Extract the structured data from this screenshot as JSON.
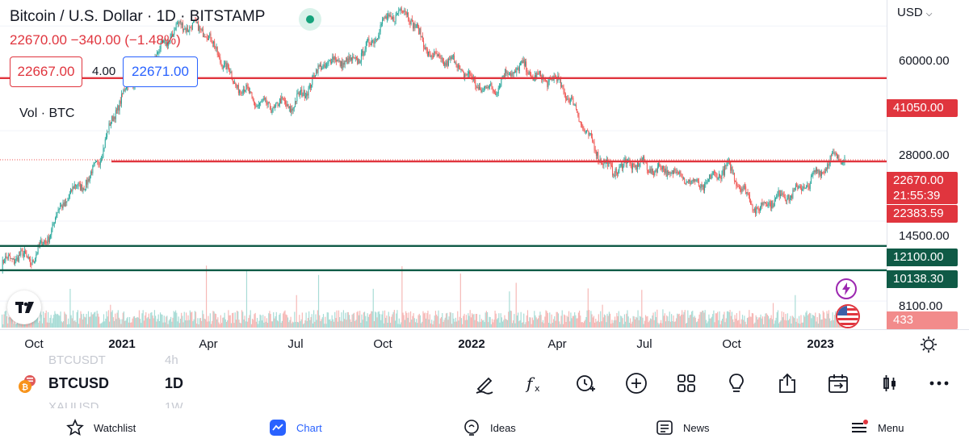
{
  "header": {
    "title": "Bitcoin / U.S. Dollar · 1D · BITSTAMP",
    "last_change": "22670.00 −340.00 (−1.48%)",
    "sell_price": "22667.00",
    "spread": "4.00",
    "buy_price": "22671.00",
    "volume_label": "Vol · BTC"
  },
  "price_axis": {
    "currency": "USD",
    "ticks": [
      "60000.00",
      "28000.00",
      "14500.00",
      "8100.00"
    ],
    "tags": {
      "resistance_high": "41050.00",
      "last_price": "22670.00",
      "countdown": "21:55:39",
      "line_level": "22383.59",
      "support_1": "12100.00",
      "support_2": "10138.30",
      "volume": "433"
    }
  },
  "time_axis": {
    "labels": [
      "Oct",
      "2021",
      "Apr",
      "Jul",
      "Oct",
      "2022",
      "Apr",
      "Jul",
      "Oct",
      "2023"
    ]
  },
  "chart_data": {
    "type": "candlestick",
    "symbol": "BTCUSD",
    "interval": "1D",
    "exchange": "BITSTAMP",
    "ylim": [
      7000,
      70000
    ],
    "log_scale": true,
    "y_ticks": [
      8100,
      14500,
      28000,
      60000
    ],
    "x_labels": [
      "Oct",
      "2021",
      "Apr",
      "Jul",
      "Oct",
      "2022",
      "Apr",
      "Jul",
      "Oct",
      "2023"
    ],
    "price_path": [
      {
        "x": "Sep",
        "y": 10500
      },
      {
        "x": "Oct",
        "y": 11000
      },
      {
        "x": "Nov",
        "y": 15500
      },
      {
        "x": "Dec",
        "y": 20000
      },
      {
        "x": "2021",
        "y": 33000
      },
      {
        "x": "Feb",
        "y": 47000
      },
      {
        "x": "Mar",
        "y": 57000
      },
      {
        "x": "Apr",
        "y": 61000
      },
      {
        "x": "May",
        "y": 38000
      },
      {
        "x": "Jun",
        "y": 35000
      },
      {
        "x": "Jul",
        "y": 32000
      },
      {
        "x": "Aug",
        "y": 47000
      },
      {
        "x": "Sep",
        "y": 44000
      },
      {
        "x": "Oct",
        "y": 61000
      },
      {
        "x": "Nov",
        "y": 65000
      },
      {
        "x": "Dec",
        "y": 47000
      },
      {
        "x": "2022",
        "y": 42000
      },
      {
        "x": "Feb",
        "y": 38000
      },
      {
        "x": "Mar",
        "y": 45000
      },
      {
        "x": "Apr",
        "y": 40000
      },
      {
        "x": "May",
        "y": 30000
      },
      {
        "x": "Jun",
        "y": 20000
      },
      {
        "x": "Jul",
        "y": 23000
      },
      {
        "x": "Aug",
        "y": 20000
      },
      {
        "x": "Sep",
        "y": 19500
      },
      {
        "x": "Oct",
        "y": 20500
      },
      {
        "x": "Nov",
        "y": 16500
      },
      {
        "x": "Dec",
        "y": 16800
      },
      {
        "x": "2023",
        "y": 21000
      },
      {
        "x": "Jan",
        "y": 22670
      }
    ],
    "horizontal_lines": [
      {
        "value": 41050.0,
        "color": "#e0353e"
      },
      {
        "value": 22383.59,
        "color": "#e0353e"
      },
      {
        "value": 12100.0,
        "color": "#0f5a46"
      },
      {
        "value": 10138.3,
        "color": "#0f5a46"
      }
    ],
    "last_price": 22670.0,
    "volume": 433
  },
  "toolbar": {
    "symbol": "BTCUSD",
    "interval": "1D",
    "ghost_symbol_above": "BTCUSDT",
    "ghost_interval_above": "4h",
    "ghost_symbol_below": "XAUUSD",
    "ghost_interval_below": "1W",
    "tools": [
      "drawing-icon",
      "indicators-icon",
      "alert-icon",
      "add-icon",
      "layouts-icon",
      "ideas-icon",
      "share-icon",
      "replay-icon",
      "chart-type-icon",
      "more-icon"
    ]
  },
  "nav": {
    "watchlist": "Watchlist",
    "chart": "Chart",
    "ideas": "Ideas",
    "news": "News",
    "menu": "Menu"
  },
  "colors": {
    "up": "#26a69a",
    "down": "#ef5350",
    "accent": "#2962ff",
    "red_line": "#e0353e",
    "green_line": "#0f5a46"
  }
}
